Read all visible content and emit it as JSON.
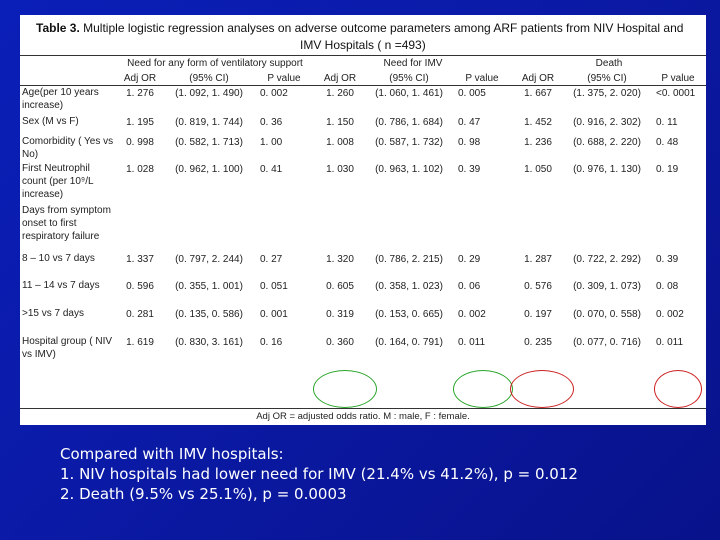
{
  "table": {
    "title_bold": "Table 3.",
    "title_text": "Multiple logistic regression analyses on adverse outcome parameters among ARF patients from NIV Hospital and",
    "title_line2": "IMV Hospitals  ( n =493)",
    "group_headers": [
      "Need for any form of ventilatory support",
      "Need for IMV",
      "Death"
    ],
    "sub_headers": [
      "Adj OR",
      "(95% CI)",
      "P value",
      "Adj OR",
      "(95% CI)",
      "P value",
      "Adj OR",
      "(95% CI)",
      "P value"
    ],
    "rows": [
      {
        "label": "Age(per 10 years increase)",
        "cells": [
          "1. 276",
          "(1. 092, 1. 490)",
          "0. 002",
          "1. 260",
          "(1. 060, 1. 461)",
          "0. 005",
          "1. 667",
          "(1. 375, 2. 020)",
          "<0. 0001"
        ]
      },
      {
        "label": "Sex (M vs F)",
        "cells": [
          "1. 195",
          "(0. 819, 1. 744)",
          "0. 36",
          "1. 150",
          "(0. 786, 1. 684)",
          "0. 47",
          "1. 452",
          "(0. 916, 2. 302)",
          "0. 11"
        ]
      },
      {
        "label": "Comorbidity ( Yes vs No)",
        "cells": [
          "0. 998",
          "(0. 582, 1. 713)",
          "1. 00",
          "1. 008",
          "(0. 587, 1. 732)",
          "0. 98",
          "1. 236",
          "(0. 688, 2. 220)",
          "0. 48"
        ]
      },
      {
        "label": "First Neutrophil count (per 10⁹/L increase)",
        "cells": [
          "1. 028",
          "(0. 962, 1. 100)",
          "0. 41",
          "1. 030",
          "(0. 963, 1. 102)",
          "0. 39",
          "1. 050",
          "(0. 976, 1. 130)",
          "0. 19"
        ]
      },
      {
        "label": "Days from symptom onset to first respiratory failure",
        "cells": [
          "",
          "",
          "",
          "",
          "",
          "",
          "",
          "",
          ""
        ]
      },
      {
        "label": "8 – 10 vs 7 days",
        "cells": [
          "1. 337",
          "(0. 797, 2. 244)",
          "0. 27",
          "1. 320",
          "(0. 786, 2. 215)",
          "0. 29",
          "1. 287",
          "(0. 722, 2. 292)",
          "0. 39"
        ]
      },
      {
        "label": "11 – 14 vs 7 days",
        "cells": [
          "0. 596",
          "(0. 355, 1. 001)",
          "0. 051",
          "0. 605",
          "(0. 358, 1. 023)",
          "0. 06",
          "0. 576",
          "(0. 309, 1. 073)",
          "0. 08"
        ]
      },
      {
        "label": ">15 vs 7 days",
        "cells": [
          "0. 281",
          "(0. 135, 0. 586)",
          "0. 001",
          "0. 319",
          "(0. 153, 0. 665)",
          "0. 002",
          "0. 197",
          "(0. 070, 0. 558)",
          "0. 002"
        ]
      },
      {
        "label": "Hospital group ( NIV vs IMV)",
        "cells": [
          "1. 619",
          "(0. 830, 3. 161)",
          "0. 16",
          "0. 360",
          "(0. 164, 0. 791)",
          "0. 011",
          "0. 235",
          "(0. 077, 0. 716)",
          "0. 011"
        ]
      }
    ],
    "footnote": "Adj OR = adjusted odds ratio.  M : male, F : female.",
    "circle_colors": {
      "green": "#2aa52a",
      "red": "#cc2222"
    }
  },
  "caption": {
    "line1": "Compared with IMV hospitals:",
    "line2": "1. NIV hospitals had lower need for IMV (21.4% vs 41.2%), p = 0.012",
    "line3": "2. Death (9.5% vs 25.1%), p = 0.0003"
  },
  "colors": {
    "background": "#0b1aa6",
    "table_bg": "#ffffff",
    "caption_text": "#ffffff"
  }
}
